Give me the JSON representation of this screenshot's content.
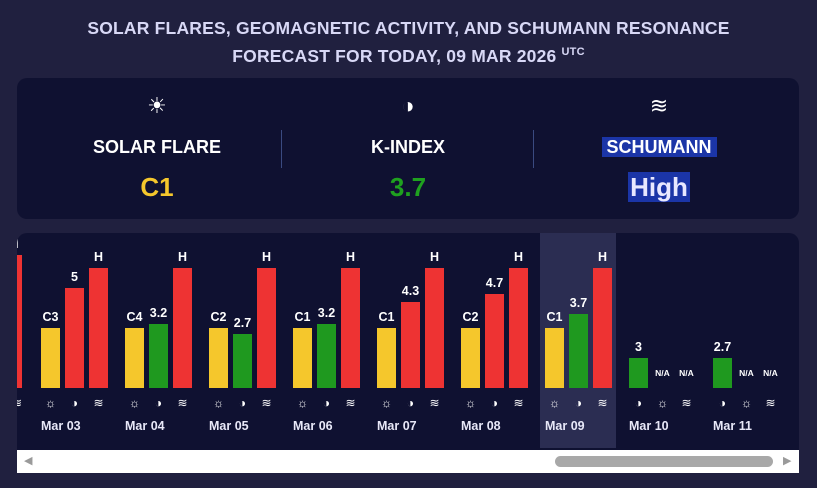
{
  "header": {
    "title_line1": "SOLAR FLARES, GEOMAGNETIC ACTIVITY, AND SCHUMANN RESONANCE",
    "title_line2": "FORECAST FOR TODAY, 09 MAR 2026",
    "title_sup": "UTC"
  },
  "summary": {
    "solar_flare": {
      "icon": "sun-icon",
      "label": "SOLAR FLARE",
      "value": "C1",
      "color": "#f5c72c"
    },
    "k_index": {
      "icon": "magnet-icon",
      "label": "K-INDEX",
      "value": "3.7",
      "color": "#1fa11f"
    },
    "schumann": {
      "icon": "wave-icon",
      "label": "SCHUMANN",
      "value": "High",
      "color": "#e8e8ff"
    }
  },
  "legend_glyphs": {
    "sun": "☼",
    "magnet": "◑",
    "wave": "≋"
  },
  "days": [
    {
      "date": "Mar 03",
      "flare": "C3",
      "k": "5",
      "schumann": "H"
    },
    {
      "date": "Mar 04",
      "flare": "C4",
      "k": "3.2",
      "schumann": "H"
    },
    {
      "date": "Mar 05",
      "flare": "C2",
      "k": "2.7",
      "schumann": "H"
    },
    {
      "date": "Mar 06",
      "flare": "C1",
      "k": "3.2",
      "schumann": "H"
    },
    {
      "date": "Mar 07",
      "flare": "C1",
      "k": "4.3",
      "schumann": "H"
    },
    {
      "date": "Mar 08",
      "flare": "C2",
      "k": "4.7",
      "schumann": "H"
    },
    {
      "date": "Mar 09",
      "flare": "C1",
      "k": "3.7",
      "schumann": "H",
      "today": true
    },
    {
      "date": "Mar 10",
      "k": "3",
      "flare": "N/A",
      "schumann": "N/A",
      "forecast": true
    },
    {
      "date": "Mar 11",
      "k": "2.7",
      "flare": "N/A",
      "schumann": "N/A",
      "forecast": true
    }
  ],
  "partial_left": {
    "schumann": "H"
  },
  "colors": {
    "flare": "#f5c72c",
    "k_low": "#1f991f",
    "k_high": "#ee3333",
    "schumann": "#ee3333"
  },
  "scrollbar": {
    "left_arrow": "◀",
    "right_arrow": "▶"
  }
}
